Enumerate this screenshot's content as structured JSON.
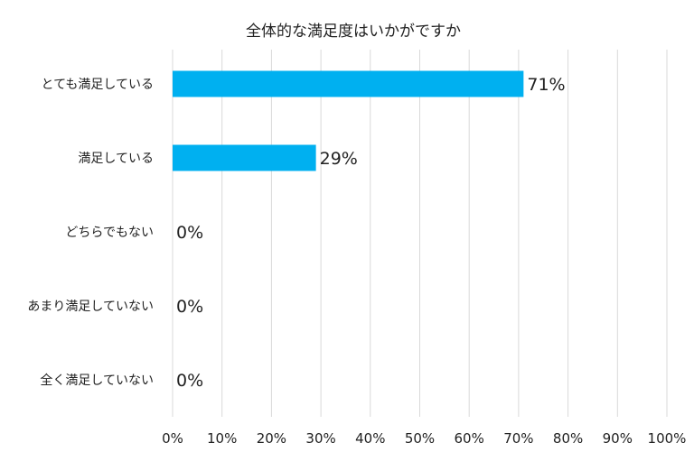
{
  "chart_data": {
    "type": "bar",
    "orientation": "horizontal",
    "title": "全体的な満足度はいかがですか",
    "categories": [
      "とても満足している",
      "満足している",
      "どちらでもない",
      "あまり満足していない",
      "全く満足していない"
    ],
    "values": [
      71,
      29,
      0,
      0,
      0
    ],
    "data_labels": [
      "71%",
      "29%",
      "0%",
      "0%",
      "0%"
    ],
    "x_ticks": [
      "0%",
      "10%",
      "20%",
      "30%",
      "40%",
      "50%",
      "60%",
      "70%",
      "80%",
      "90%",
      "100%"
    ],
    "xlim": [
      0,
      100
    ],
    "grid": true,
    "bar_color": "#00B0F0",
    "grid_color": "#D9D9D9"
  }
}
